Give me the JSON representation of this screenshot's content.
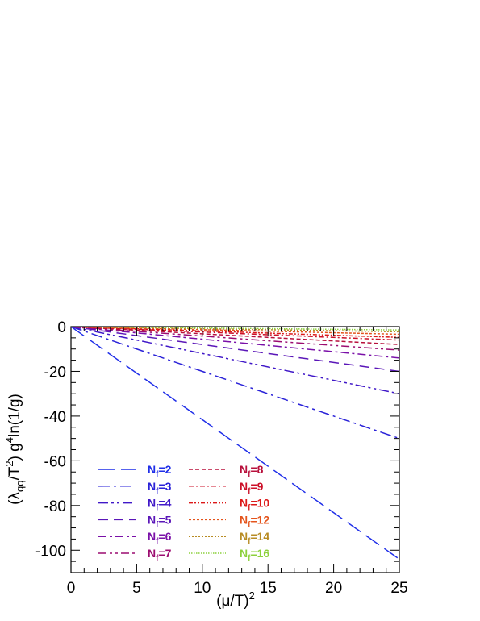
{
  "chart_data": {
    "type": "line",
    "xlabel": "(μ/T)",
    "xlabel_sup": "2",
    "ylabel_parts": [
      "(λ",
      "qq",
      "/T",
      "2",
      ") g",
      "4",
      "ln(1/g)"
    ],
    "xlim": [
      0,
      25
    ],
    "ylim": [
      -110,
      0
    ],
    "xticks": [
      0,
      5,
      10,
      15,
      20,
      25
    ],
    "yticks": [
      0,
      -20,
      -40,
      -60,
      -80,
      -100
    ],
    "grid": false,
    "legend_placement": "bottom-left",
    "series": [
      {
        "name": "N",
        "sub": "f",
        "value": "=2",
        "color": "#1f2ee8",
        "dash": "20,8",
        "x": [
          0,
          25
        ],
        "y": [
          0,
          -104
        ]
      },
      {
        "name": "N",
        "sub": "f",
        "value": "=3",
        "color": "#2a22d8",
        "dash": "14,5,3,5",
        "x": [
          0,
          25
        ],
        "y": [
          0,
          -50
        ]
      },
      {
        "name": "N",
        "sub": "f",
        "value": "=4",
        "color": "#4018c8",
        "dash": "12,4,3,4,3,4",
        "x": [
          0,
          25
        ],
        "y": [
          0,
          -30
        ]
      },
      {
        "name": "N",
        "sub": "f",
        "value": "=5",
        "color": "#5a16b8",
        "dash": "12,7",
        "x": [
          0,
          25
        ],
        "y": [
          0,
          -20
        ]
      },
      {
        "name": "N",
        "sub": "f",
        "value": "=6",
        "color": "#7a10a8",
        "dash": "10,4,3,4",
        "x": [
          0,
          25
        ],
        "y": [
          0,
          -14
        ]
      },
      {
        "name": "N",
        "sub": "f",
        "value": "=7",
        "color": "#9c0c70",
        "dash": "10,4,3,4,3,4",
        "x": [
          0,
          25
        ],
        "y": [
          0,
          -10.5
        ]
      },
      {
        "name": "N",
        "sub": "f",
        "value": "=8",
        "color": "#b8103c",
        "dash": "5,3",
        "x": [
          0,
          25
        ],
        "y": [
          0,
          -8
        ]
      },
      {
        "name": "N",
        "sub": "f",
        "value": "=9",
        "color": "#cc1028",
        "dash": "6,3,2,3",
        "x": [
          0,
          25
        ],
        "y": [
          0,
          -6
        ]
      },
      {
        "name": "N",
        "sub": "f",
        "value": "=10",
        "color": "#dc1818",
        "dash": "5,2,2,2,2,2",
        "x": [
          0,
          25
        ],
        "y": [
          0,
          -4.8
        ]
      },
      {
        "name": "N",
        "sub": "f",
        "value": "=12",
        "color": "#e4541c",
        "dash": "3,2",
        "x": [
          0,
          25
        ],
        "y": [
          0,
          -3.4
        ]
      },
      {
        "name": "N",
        "sub": "f",
        "value": "=14",
        "color": "#b88c24",
        "dash": "2,2",
        "x": [
          0,
          25
        ],
        "y": [
          0,
          -2.3
        ]
      },
      {
        "name": "N",
        "sub": "f",
        "value": "=16",
        "color": "#8cd03c",
        "dash": "1.5,1.5",
        "x": [
          0,
          25
        ],
        "y": [
          0,
          -1.5
        ]
      }
    ]
  }
}
